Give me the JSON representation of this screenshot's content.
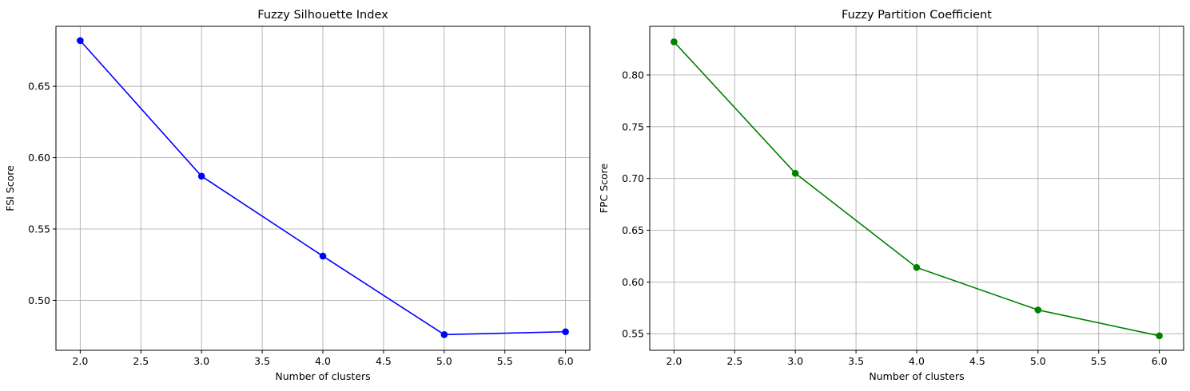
{
  "chart_data": [
    {
      "type": "line",
      "title": "Fuzzy Silhouette Index",
      "xlabel": "Number of clusters",
      "ylabel": "FSI Score",
      "x": [
        2,
        3,
        4,
        5,
        6
      ],
      "series": [
        {
          "values": [
            0.682,
            0.587,
            0.531,
            0.476,
            0.478
          ],
          "color": "#0000ff",
          "marker": "circle"
        }
      ],
      "xlim": [
        1.8,
        6.2
      ],
      "ylim": [
        0.465,
        0.692
      ],
      "xticks": [
        2.0,
        2.5,
        3.0,
        3.5,
        4.0,
        4.5,
        5.0,
        5.5,
        6.0
      ],
      "xtick_labels": [
        "2.0",
        "2.5",
        "3.0",
        "3.5",
        "4.0",
        "4.5",
        "5.0",
        "5.5",
        "6.0"
      ],
      "yticks": [
        0.5,
        0.55,
        0.6,
        0.65
      ],
      "ytick_labels": [
        "0.50",
        "0.55",
        "0.60",
        "0.65"
      ],
      "grid": true
    },
    {
      "type": "line",
      "title": "Fuzzy Partition Coefficient",
      "xlabel": "Number of clusters",
      "ylabel": "FPC Score",
      "x": [
        2,
        3,
        4,
        5,
        6
      ],
      "series": [
        {
          "values": [
            0.832,
            0.705,
            0.614,
            0.573,
            0.548
          ],
          "color": "#008000",
          "marker": "circle"
        }
      ],
      "xlim": [
        1.8,
        6.2
      ],
      "ylim": [
        0.534,
        0.847
      ],
      "xticks": [
        2.0,
        2.5,
        3.0,
        3.5,
        4.0,
        4.5,
        5.0,
        5.5,
        6.0
      ],
      "xtick_labels": [
        "2.0",
        "2.5",
        "3.0",
        "3.5",
        "4.0",
        "4.5",
        "5.0",
        "5.5",
        "6.0"
      ],
      "yticks": [
        0.55,
        0.6,
        0.65,
        0.7,
        0.75,
        0.8
      ],
      "ytick_labels": [
        "0.55",
        "0.60",
        "0.65",
        "0.70",
        "0.75",
        "0.80"
      ],
      "grid": true
    }
  ]
}
